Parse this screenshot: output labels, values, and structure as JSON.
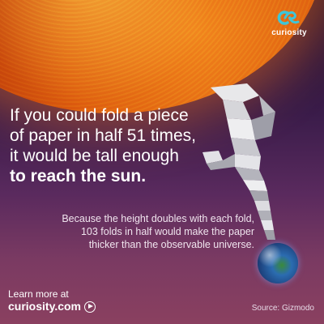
{
  "headline": {
    "line1": "If you could fold a piece",
    "line2": "of paper in half 51 times,",
    "line3": "it would be tall enough",
    "emphasis": "to reach the sun."
  },
  "subtext": {
    "line1": "Because the height doubles with each fold,",
    "line2": "103 folds in half would make the paper",
    "line3": "thicker than the observable universe."
  },
  "brand": {
    "name": "curiosity",
    "color": "#3ec6d8"
  },
  "footer": {
    "learn_more": "Learn more at",
    "url": "curiosity.com",
    "source": "Source: Gizmodo"
  },
  "icons": [
    "curiosity-logo-icon",
    "play-icon",
    "folded-paper-illustration",
    "earth-illustration",
    "sun-illustration"
  ]
}
